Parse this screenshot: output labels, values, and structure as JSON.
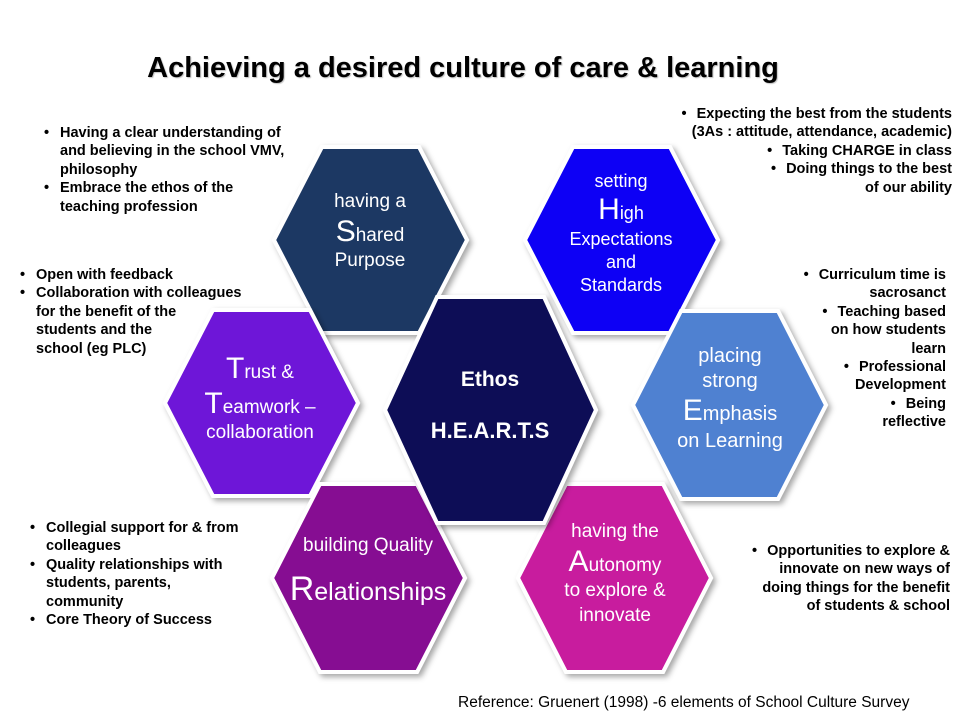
{
  "title": "Achieving a desired culture of care & learning",
  "colors": {
    "shared_purpose": "#1f3864",
    "high_expectations": "#0a00f5",
    "emphasis_learning": "#4f81d1",
    "center": "#0c0b57",
    "trust_teamwork": "#6e14d8",
    "quality_relationships": "#860b92",
    "autonomy": "#c81a9e"
  },
  "hexagons": {
    "shared_purpose": {
      "pre": "having a",
      "big": "S",
      "rest": "hared",
      "post": "Purpose"
    },
    "high_expectations": {
      "pre": "setting",
      "big": "H",
      "rest": "igh",
      "post1": "Expectations",
      "post2": "and",
      "post3": "Standards"
    },
    "emphasis_learning": {
      "pre1": "placing",
      "pre2": "strong",
      "big": "E",
      "rest": "mphasis",
      "post": "on Learning"
    },
    "center": {
      "line1": "Ethos",
      "line2": "H.E.A.R.T.S"
    },
    "trust_teamwork": {
      "big1": "T",
      "rest1": "rust &",
      "big2": "T",
      "rest2": "eamwork –",
      "post": "collaboration"
    },
    "quality_relationships": {
      "pre": "building Quality",
      "big": "R",
      "rest": "elationships"
    },
    "autonomy": {
      "pre": "having the",
      "big": "A",
      "rest": "utonomy",
      "post1": "to explore &",
      "post2": "innovate"
    }
  },
  "notes": {
    "shared_purpose": [
      "Having a clear understanding of",
      "and believing in the school VMV,",
      "philosophy",
      "Embrace the ethos of the",
      "teaching profession"
    ],
    "trust_teamwork": [
      "Open with feedback",
      "Collaboration with colleagues",
      "for the benefit of the",
      "students and the",
      "school (eg PLC)"
    ],
    "quality_relationships": [
      "Collegial support for & from",
      "colleagues",
      "Quality relationships  with",
      "students,  parents,",
      "community",
      "Core Theory of Success"
    ],
    "high_expectations": [
      "Expecting the best from the students",
      "(3As : attitude,  attendance, academic)",
      "Taking CHARGE in class",
      "Doing things to the best",
      "of our ability"
    ],
    "emphasis_learning": [
      "Curriculum time is",
      "sacrosanct",
      "Teaching based",
      "on how students",
      "learn",
      "Professional",
      "Development",
      "Being",
      "reflective"
    ],
    "autonomy": [
      "Opportunities to explore &",
      "innovate on new ways of",
      "doing things for the benefit",
      "of students  & school"
    ]
  },
  "reference": "Reference: Gruenert (1998) -6 elements of School Culture Survey"
}
